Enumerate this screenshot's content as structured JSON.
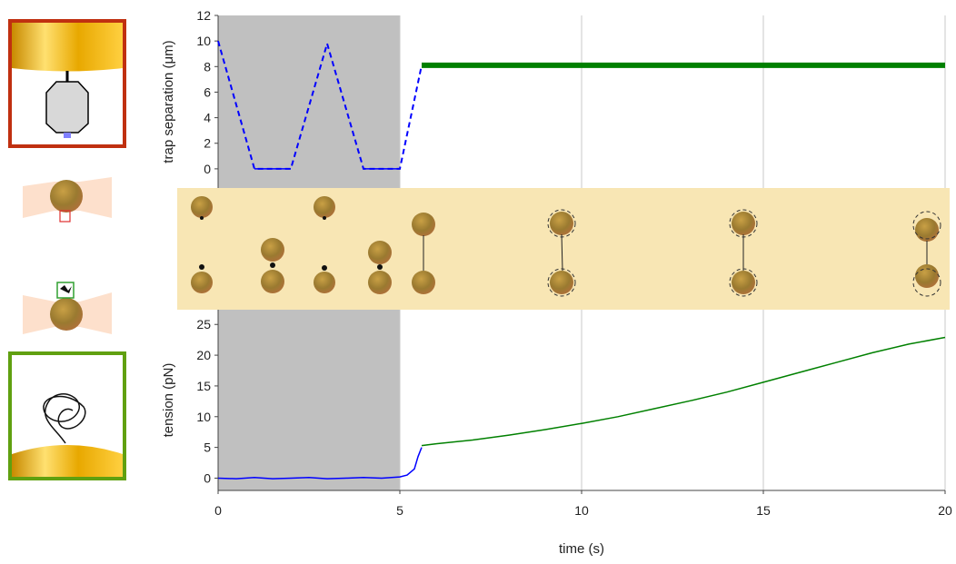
{
  "chart_data": [
    {
      "type": "line",
      "ylabel": "trap separation (μm)",
      "xlim": [
        0,
        20
      ],
      "ylim": [
        -1.5,
        12
      ],
      "yticks": [
        0,
        2,
        4,
        6,
        8,
        10,
        12
      ],
      "shaded_x": [
        0,
        5
      ],
      "shade_color": "#c0c0c0",
      "series": [
        {
          "color": "#0000ff",
          "style": "dashed",
          "x": [
            0,
            1,
            2,
            3,
            4,
            5,
            5.6
          ],
          "values": [
            10,
            0,
            0,
            9.8,
            0,
            0,
            8.1
          ]
        },
        {
          "color": "#0000ff",
          "style": "solid",
          "x": [
            0,
            1,
            2,
            3,
            4,
            5,
            5.6
          ],
          "values": [
            null,
            0,
            0,
            null,
            0,
            0,
            null
          ]
        },
        {
          "color": "#008000",
          "style": "bold",
          "x": [
            5.6,
            20
          ],
          "values": [
            8.1,
            8.1
          ]
        }
      ]
    },
    {
      "type": "line",
      "xlabel": "time (s)",
      "ylabel": "tension (pN)",
      "xlim": [
        0,
        20
      ],
      "xticks": [
        0,
        5,
        10,
        15,
        20
      ],
      "ylim": [
        -2,
        27.4
      ],
      "yticks": [
        0,
        5,
        10,
        15,
        20,
        25
      ],
      "grid": true,
      "series": [
        {
          "color": "#0000ff",
          "style": "solid",
          "x": [
            0,
            0.5,
            1,
            1.5,
            2,
            2.5,
            3,
            3.5,
            4,
            4.5,
            5,
            5.2,
            5.4,
            5.5,
            5.6
          ],
          "values": [
            0,
            -0.1,
            0.1,
            -0.1,
            0,
            0.1,
            -0.1,
            0,
            0.1,
            0,
            0.2,
            0.5,
            1.5,
            3.5,
            5.0
          ]
        },
        {
          "color": "#008000",
          "style": "solid",
          "x": [
            5.6,
            6,
            7,
            8,
            9,
            10,
            11,
            12,
            13,
            14,
            15,
            16,
            17,
            18,
            19,
            20
          ],
          "values": [
            5.3,
            5.6,
            6.2,
            7.0,
            7.9,
            8.9,
            10.0,
            11.3,
            12.6,
            14.0,
            15.6,
            17.2,
            18.8,
            20.4,
            21.8,
            22.9
          ]
        }
      ]
    }
  ]
}
